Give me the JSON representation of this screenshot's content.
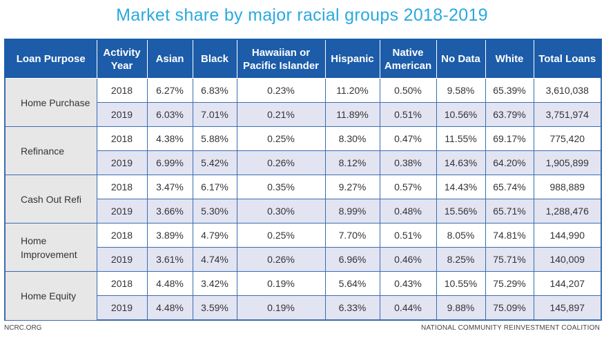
{
  "title": "Market share by major racial groups 2018-2019",
  "footer": {
    "left": "NCRC.ORG",
    "right": "NATIONAL COMMUNITY REINVESTMENT COALITION"
  },
  "colors": {
    "title": "#29a9df",
    "header_bg": "#1c5ca9",
    "purpose_bg": "#e7e7e7",
    "alt_row_bg": "#e2e4f2",
    "border": "#3b6bb0"
  },
  "chart_data": {
    "type": "table",
    "title": "Market share by major racial groups 2018-2019",
    "columns": [
      "Loan Purpose",
      "Activity Year",
      "Asian",
      "Black",
      "Hawaiian or Pacific Islander",
      "Hispanic",
      "Native American",
      "No Data",
      "White",
      "Total Loans"
    ],
    "groups": [
      {
        "purpose": "Home Purchase",
        "rows": [
          [
            "2018",
            "6.27%",
            "6.83%",
            "0.23%",
            "11.20%",
            "0.50%",
            "9.58%",
            "65.39%",
            "3,610,038"
          ],
          [
            "2019",
            "6.03%",
            "7.01%",
            "0.21%",
            "11.89%",
            "0.51%",
            "10.56%",
            "63.79%",
            "3,751,974"
          ]
        ]
      },
      {
        "purpose": "Refinance",
        "rows": [
          [
            "2018",
            "4.38%",
            "5.88%",
            "0.25%",
            "8.30%",
            "0.47%",
            "11.55%",
            "69.17%",
            "775,420"
          ],
          [
            "2019",
            "6.99%",
            "5.42%",
            "0.26%",
            "8.12%",
            "0.38%",
            "14.63%",
            "64.20%",
            "1,905,899"
          ]
        ]
      },
      {
        "purpose": "Cash Out Refi",
        "rows": [
          [
            "2018",
            "3.47%",
            "6.17%",
            "0.35%",
            "9.27%",
            "0.57%",
            "14.43%",
            "65.74%",
            "988,889"
          ],
          [
            "2019",
            "3.66%",
            "5.30%",
            "0.30%",
            "8.99%",
            "0.48%",
            "15.56%",
            "65.71%",
            "1,288,476"
          ]
        ]
      },
      {
        "purpose": "Home Improvement",
        "rows": [
          [
            "2018",
            "3.89%",
            "4.79%",
            "0.25%",
            "7.70%",
            "0.51%",
            "8.05%",
            "74.81%",
            "144,990"
          ],
          [
            "2019",
            "3.61%",
            "4.74%",
            "0.26%",
            "6.96%",
            "0.46%",
            "8.25%",
            "75.71%",
            "140,009"
          ]
        ]
      },
      {
        "purpose": "Home Equity",
        "rows": [
          [
            "2018",
            "4.48%",
            "3.42%",
            "0.19%",
            "5.64%",
            "0.43%",
            "10.55%",
            "75.29%",
            "144,207"
          ],
          [
            "2019",
            "4.48%",
            "3.59%",
            "0.19%",
            "6.33%",
            "0.44%",
            "9.88%",
            "75.09%",
            "145,897"
          ]
        ]
      }
    ]
  }
}
